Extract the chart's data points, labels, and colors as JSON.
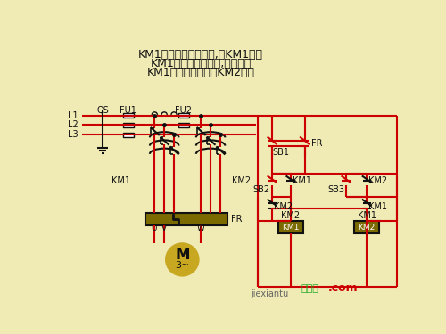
{
  "bg_color": "#f0eab4",
  "wire_color": "#cc0000",
  "black_color": "#111111",
  "comp_color": "#7a6a00",
  "title_lines": [
    "KM1动合辅助触头闭合,对KM1自锁",
    "KM1动合主触头闭合,电机正转",
    "KM1动断触头断开对KM2联锁"
  ],
  "watermark": "接线图",
  "watermark2": ".com",
  "site": "jiexiantu"
}
